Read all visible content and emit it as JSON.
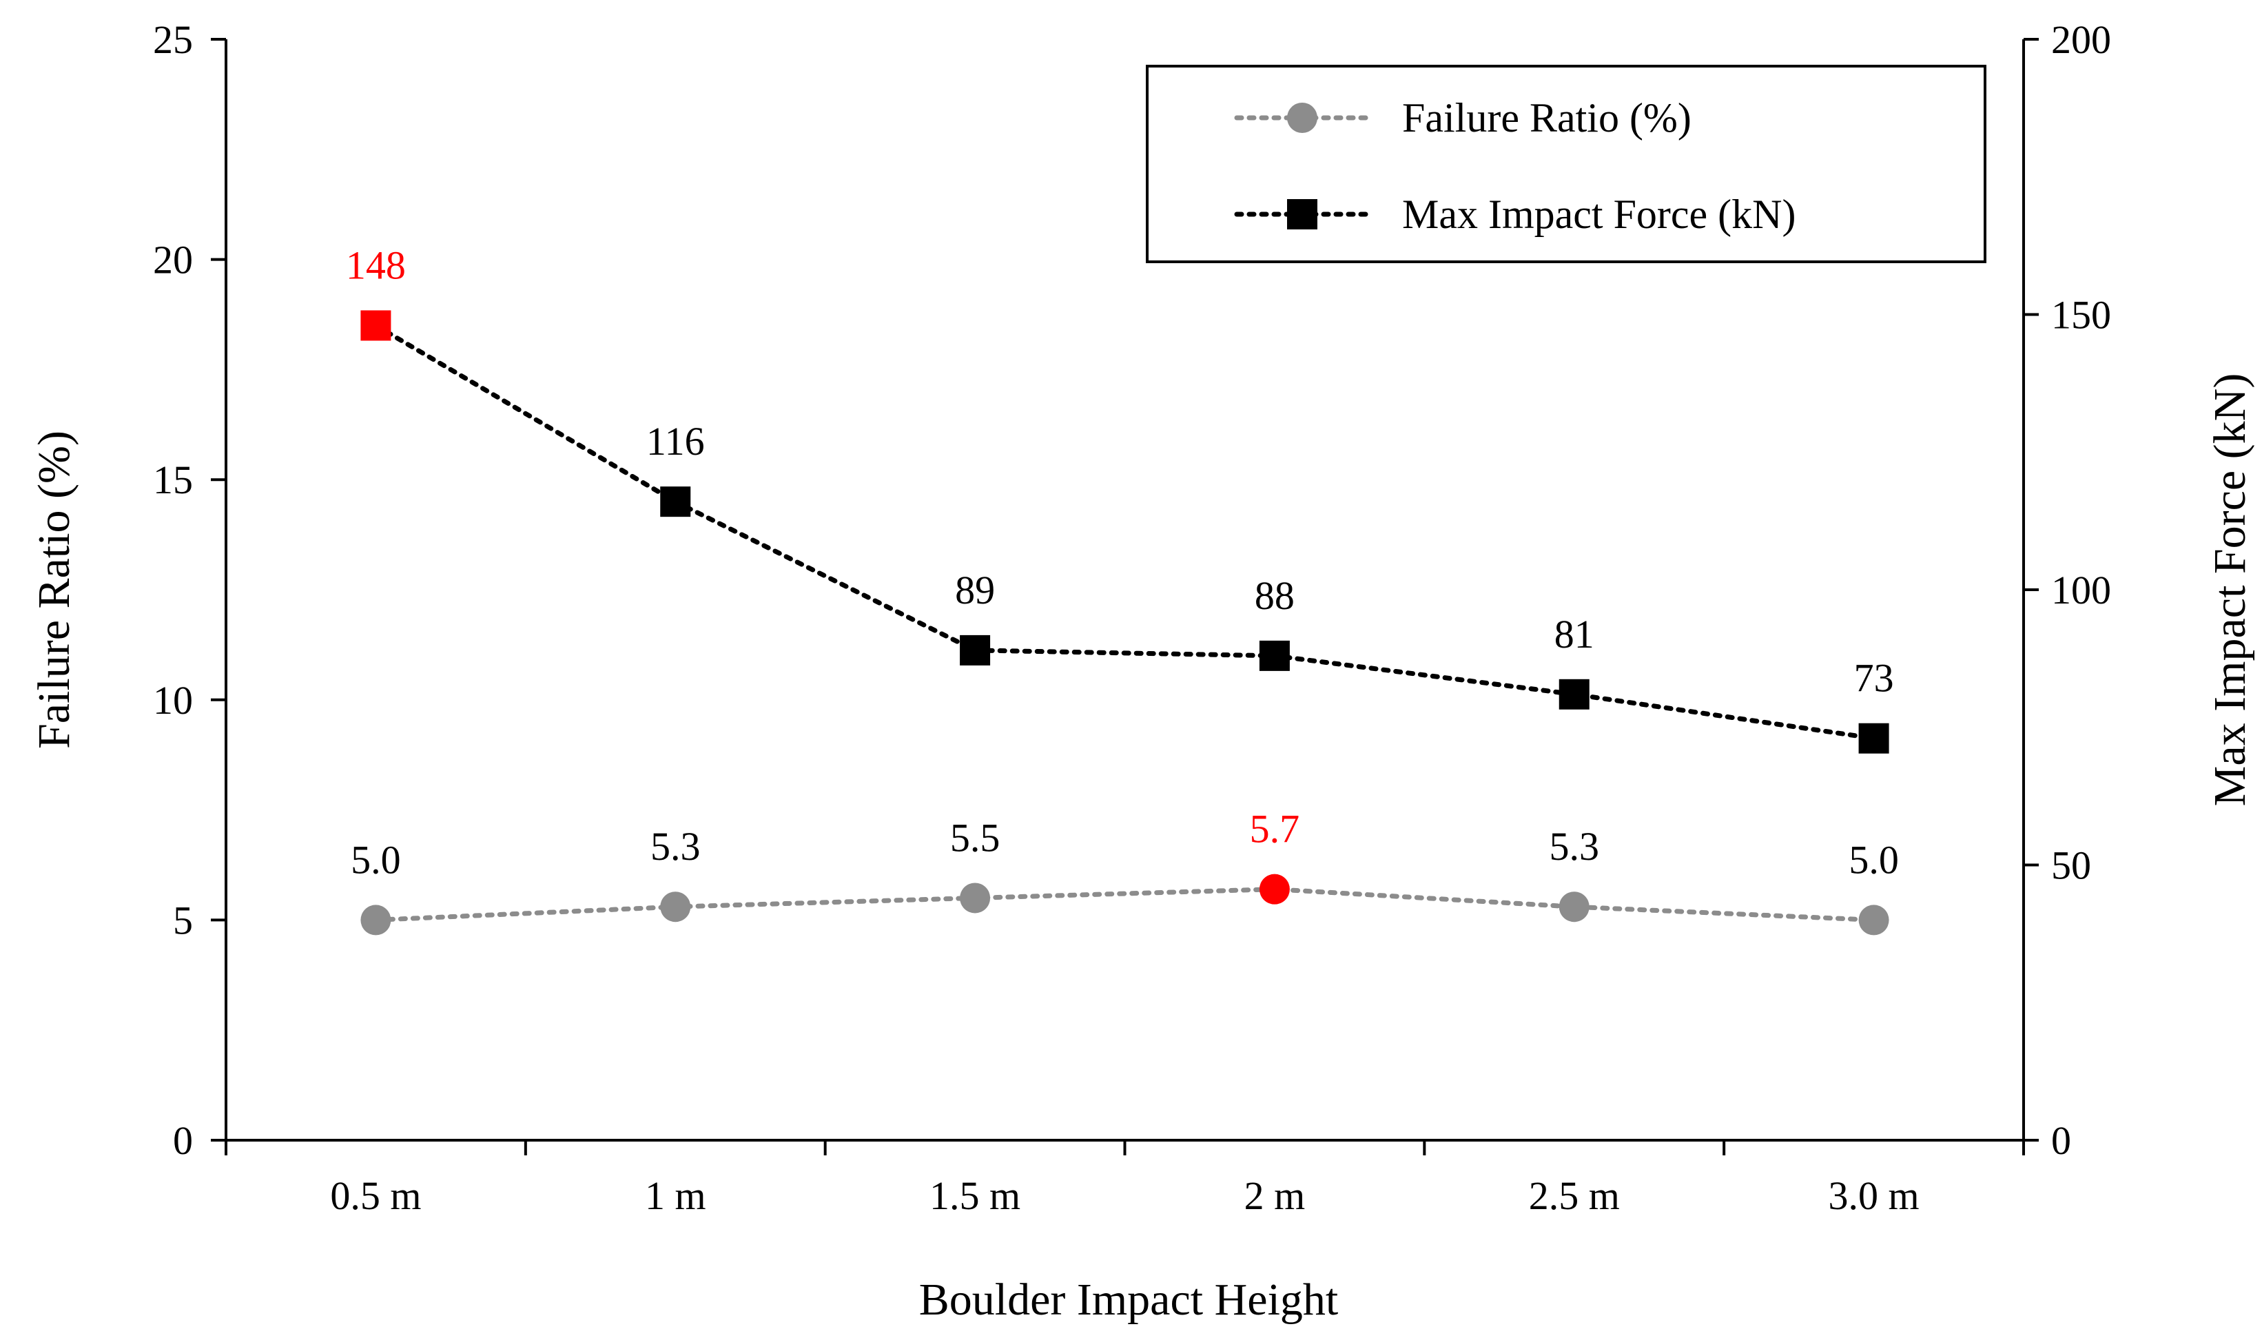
{
  "chart_data": {
    "type": "line",
    "title": "",
    "xlabel": "Boulder Impact Height",
    "ylabel": "Failure Ratio (%)",
    "y2label": "Max Impact Force (kN)",
    "categories": [
      "0.5 m",
      "1 m",
      "1.5 m",
      "2 m",
      "2.5 m",
      "3.0 m"
    ],
    "ylim": [
      0,
      25
    ],
    "yticks": [
      0,
      5,
      10,
      15,
      20,
      25
    ],
    "y2lim": [
      0,
      200
    ],
    "y2ticks": [
      0,
      50,
      100,
      150,
      200
    ],
    "grid": false,
    "legend_position": "top-right",
    "series": [
      {
        "name": "Failure Ratio (%)",
        "axis": "left",
        "marker": "circle",
        "line_style": "dotted",
        "color": "#8c8c8c",
        "values": [
          5.0,
          5.3,
          5.5,
          5.7,
          5.3,
          5.0
        ],
        "labels": [
          "5.0",
          "5.3",
          "5.5",
          "5.7",
          "5.3",
          "5.0"
        ],
        "highlight_index": 3
      },
      {
        "name": "Max Impact Force (kN)",
        "axis": "right",
        "marker": "square",
        "line_style": "dotted",
        "color": "#000000",
        "values": [
          148,
          116,
          89,
          88,
          81,
          73
        ],
        "labels": [
          "148",
          "116",
          "89",
          "88",
          "81",
          "73"
        ],
        "highlight_index": 0
      }
    ],
    "highlight_color": "#ff0000"
  }
}
